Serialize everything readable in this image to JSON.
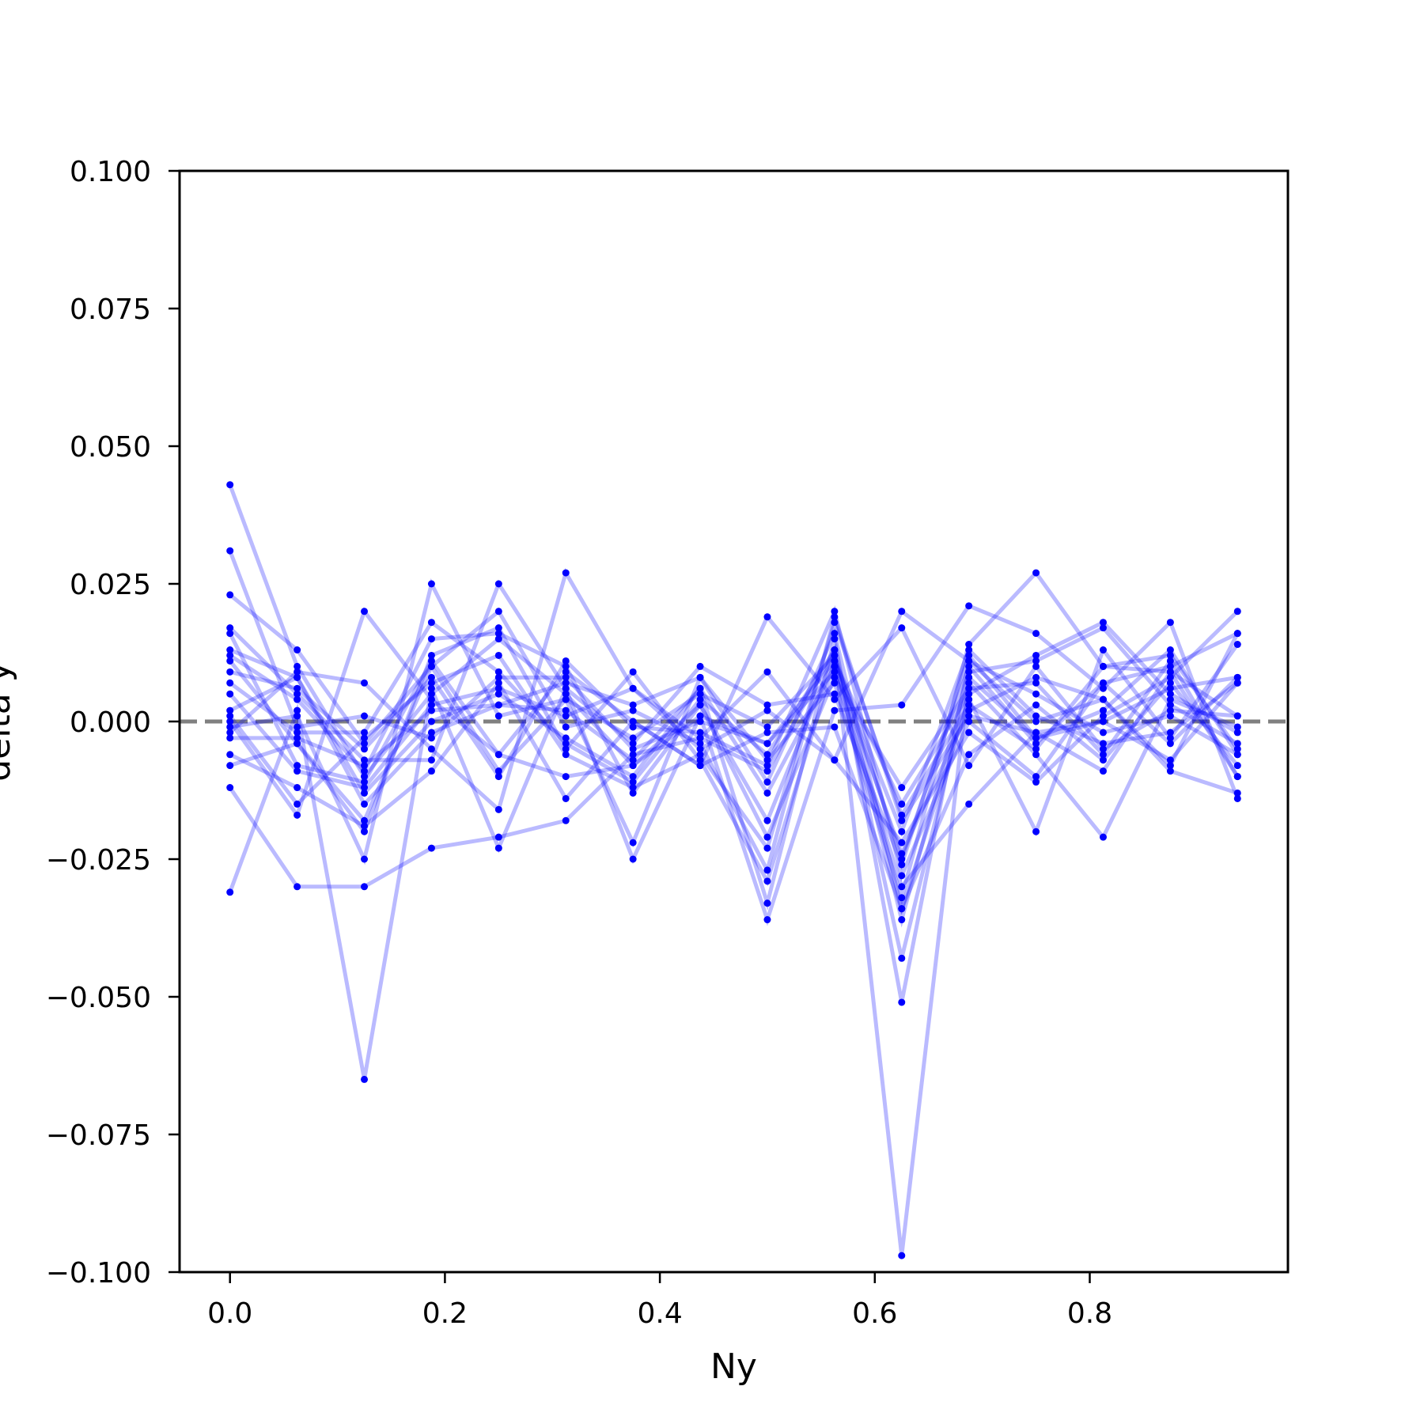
{
  "chart_data": {
    "type": "line",
    "xlabel": "Ny",
    "ylabel": "delta y",
    "xlim": [
      -0.0469,
      0.9844
    ],
    "ylim": [
      -0.1,
      0.1
    ],
    "x": [
      0.0,
      0.0625,
      0.125,
      0.1875,
      0.25,
      0.3125,
      0.375,
      0.4375,
      0.5,
      0.5625,
      0.625,
      0.6875,
      0.75,
      0.8125,
      0.875,
      0.9375
    ],
    "x_ticks": [
      "0.0",
      "0.2",
      "0.4",
      "0.6",
      "0.8"
    ],
    "y_ticks": [
      "0.100",
      "0.075",
      "0.050",
      "0.025",
      "0.000",
      "−0.025",
      "−0.050",
      "−0.075",
      "−0.100"
    ],
    "reference_line": {
      "y": 0.0,
      "style": "dashed",
      "color": "#808080"
    },
    "series_color": "#0000ff",
    "series_opacity": 0.27,
    "grid": false,
    "series": [
      {
        "values": [
          0.043,
          0.01,
          -0.01,
          0.005,
          0.015,
          0.005,
          -0.008,
          0.003,
          -0.018,
          0.012,
          -0.025,
          0.01,
          -0.004,
          0.007,
          -0.004,
          0.008
        ]
      },
      {
        "values": [
          0.031,
          -0.001,
          0.001,
          -0.003,
          0.008,
          0.008,
          -0.005,
          0.0,
          -0.004,
          0.011,
          -0.015,
          0.005,
          0.012,
          0.018,
          0.005,
          -0.002
        ]
      },
      {
        "values": [
          0.023,
          0.013,
          -0.004,
          0.01,
          0.02,
          -0.001,
          0.002,
          -0.004,
          -0.027,
          0.019,
          -0.018,
          0.001,
          -0.002,
          -0.009,
          0.009,
          0.001
        ]
      },
      {
        "values": [
          0.017,
          0.005,
          -0.007,
          -0.007,
          0.025,
          0.006,
          -0.004,
          0.01,
          0.003,
          0.005,
          -0.026,
          0.012,
          -0.003,
          0.002,
          0.013,
          -0.006
        ]
      },
      {
        "values": [
          0.016,
          -0.008,
          -0.011,
          0.011,
          -0.006,
          0.009,
          0.0,
          -0.008,
          -0.002,
          -0.001,
          -0.034,
          0.004,
          -0.02,
          0.013,
          -0.003,
          0.014
        ]
      },
      {
        "values": [
          0.013,
          0.008,
          -0.013,
          0.0,
          0.005,
          -0.003,
          -0.01,
          0.006,
          -0.033,
          0.015,
          -0.051,
          0.011,
          0.0,
          0.004,
          -0.008,
          0.016
        ]
      },
      {
        "values": [
          0.012,
          0.004,
          -0.009,
          0.015,
          0.016,
          0.01,
          -0.013,
          0.003,
          -0.021,
          0.008,
          -0.012,
          0.006,
          0.007,
          -0.006,
          0.011,
          -0.01
        ]
      },
      {
        "values": [
          0.011,
          -0.004,
          -0.02,
          0.012,
          0.017,
          -0.005,
          0.009,
          -0.007,
          -0.029,
          0.011,
          -0.02,
          0.013,
          0.001,
          -0.004,
          -0.002,
          0.007
        ]
      },
      {
        "values": [
          0.009,
          0.006,
          -0.005,
          0.008,
          -0.01,
          0.011,
          -0.001,
          -0.002,
          -0.008,
          0.02,
          -0.028,
          0.0,
          -0.01,
          0.007,
          0.01,
          0.016
        ]
      },
      {
        "values": [
          0.007,
          -0.002,
          -0.002,
          0.018,
          0.009,
          -0.004,
          -0.011,
          0.004,
          -0.006,
          0.013,
          -0.036,
          0.009,
          0.011,
          0.017,
          0.003,
          -0.004
        ]
      },
      {
        "values": [
          0.005,
          -0.009,
          -0.012,
          0.003,
          0.006,
          0.001,
          0.006,
          -0.005,
          0.002,
          -0.007,
          -0.022,
          -0.002,
          -0.011,
          0.001,
          0.008,
          0.02
        ]
      },
      {
        "values": [
          0.002,
          0.008,
          -0.015,
          -0.002,
          0.003,
          0.007,
          0.003,
          0.008,
          -0.011,
          0.016,
          -0.034,
          -0.006,
          0.003,
          -0.007,
          0.007,
          -0.008
        ]
      },
      {
        "values": [
          0.001,
          -0.015,
          -0.003,
          0.007,
          0.012,
          -0.006,
          -0.012,
          -0.006,
          -0.023,
          0.018,
          -0.017,
          0.003,
          -0.005,
          0.01,
          0.012,
          -0.005
        ]
      },
      {
        "values": [
          0.0,
          -0.017,
          0.02,
          0.004,
          -0.006,
          -0.01,
          -0.008,
          0.001,
          -0.004,
          0.009,
          -0.03,
          -0.015,
          -0.002,
          0.0,
          -0.007,
          0.007
        ]
      },
      {
        "values": [
          -0.001,
          0.001,
          -0.025,
          0.025,
          0.001,
          0.004,
          -0.003,
          0.005,
          -0.001,
          0.012,
          -0.043,
          0.007,
          -0.006,
          -0.021,
          0.004,
          -0.001
        ]
      },
      {
        "values": [
          -0.002,
          0.009,
          0.007,
          -0.005,
          -0.016,
          0.027,
          0.006,
          -0.003,
          0.009,
          -0.007,
          0.02,
          0.011,
          0.005,
          -0.002,
          0.001,
          -0.006
        ]
      },
      {
        "values": [
          -0.003,
          -0.003,
          -0.008,
          0.002,
          0.003,
          0.002,
          -0.007,
          0.006,
          -0.013,
          0.01,
          -0.024,
          0.002,
          0.008,
          0.004,
          -0.009,
          -0.013
        ]
      },
      {
        "values": [
          -0.006,
          -0.012,
          -0.019,
          -0.009,
          0.007,
          -0.014,
          0.0,
          -0.008,
          0.019,
          0.004,
          0.017,
          -0.008,
          0.01,
          -0.005,
          0.002,
          0.001
        ]
      },
      {
        "values": [
          -0.008,
          -0.004,
          -0.018,
          0.01,
          -0.009,
          0.004,
          -0.022,
          0.008,
          -0.007,
          0.007,
          -0.032,
          0.014,
          0.027,
          0.01,
          0.009,
          -0.01
        ]
      },
      {
        "values": [
          -0.012,
          -0.03,
          -0.03,
          -0.023,
          -0.021,
          -0.018,
          -0.006,
          -0.003,
          -0.009,
          0.013,
          -0.097,
          0.008,
          -0.003,
          0.0,
          0.006,
          0.008
        ]
      },
      {
        "values": [
          -0.031,
          0.002,
          -0.065,
          0.006,
          -0.023,
          0.006,
          -0.025,
          0.001,
          -0.036,
          0.002,
          0.003,
          0.021,
          0.016,
          0.006,
          0.018,
          -0.014
        ]
      }
    ]
  }
}
